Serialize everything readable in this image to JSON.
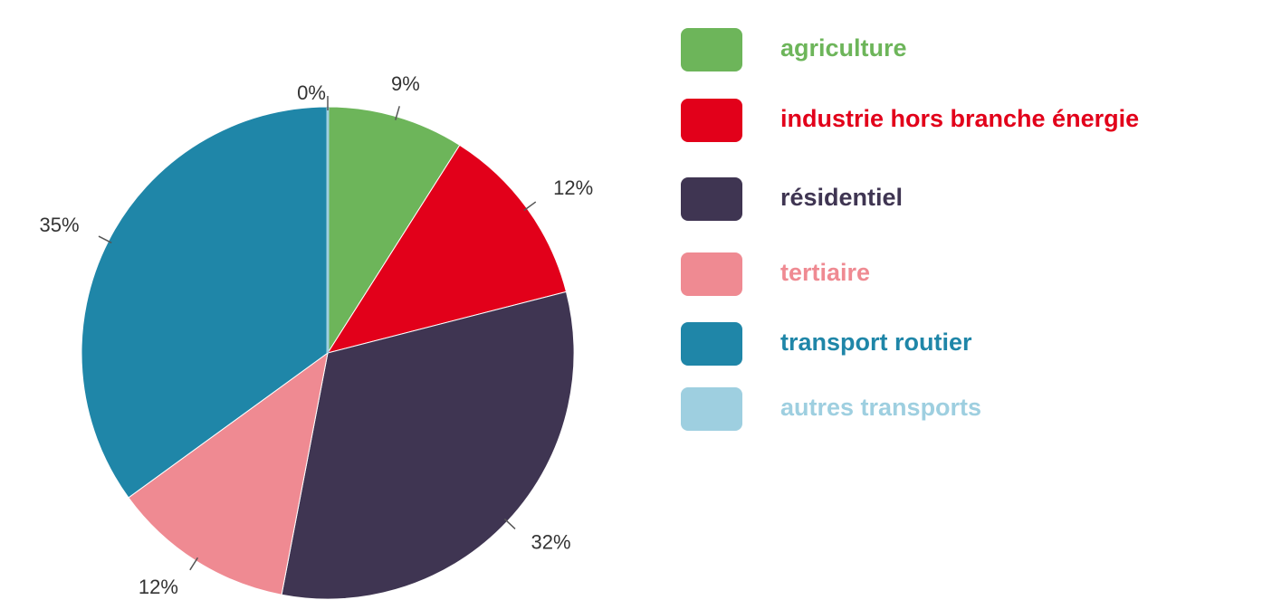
{
  "chart_data": {
    "type": "pie",
    "categories": [
      "agriculture",
      "industrie hors branche énergie",
      "résidentiel",
      "tertiaire",
      "transport routier",
      "autres transports"
    ],
    "values": [
      9,
      12,
      32,
      12,
      35,
      0
    ],
    "value_labels": [
      "9%",
      "12%",
      "32%",
      "12%",
      "35%",
      "0%"
    ],
    "colors": [
      "#6db55a",
      "#e2001a",
      "#3f3552",
      "#ef8a92",
      "#1f86a8",
      "#9ecfe0"
    ]
  }
}
